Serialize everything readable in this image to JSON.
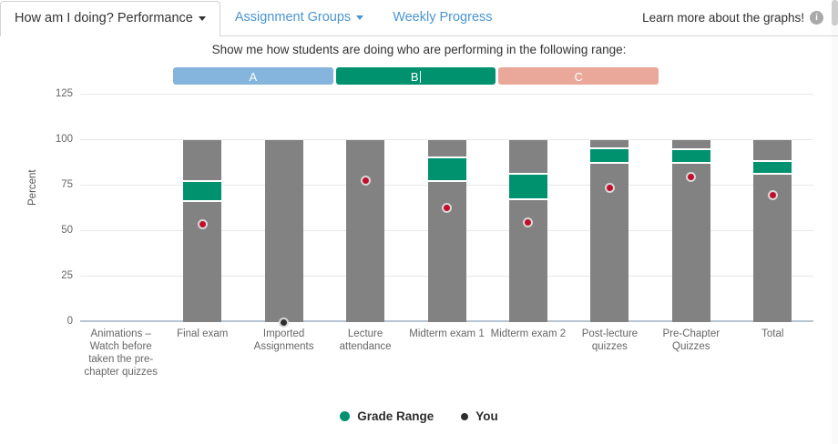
{
  "header": {
    "tabs": [
      {
        "label": "How am I doing? Performance",
        "caret": true,
        "active": true
      },
      {
        "label": "Assignment Groups",
        "caret": true,
        "active": false
      },
      {
        "label": "Weekly Progress",
        "caret": false,
        "active": false
      }
    ],
    "learn_more_label": "Learn more about the graphs!",
    "info_icon": "info-icon"
  },
  "subtitle": "Show me how students are doing who are performing in the following range:",
  "range_buttons": [
    {
      "label": "A",
      "color": "#85b5dd",
      "selected": false
    },
    {
      "label": "B",
      "color": "#00916f",
      "selected": true
    },
    {
      "label": "C",
      "color": "#e9a89a",
      "selected": false
    }
  ],
  "chart_data": {
    "type": "bar",
    "title": "",
    "xlabel": "",
    "ylabel": "Percent",
    "yticks": [
      0,
      25,
      50,
      75,
      100,
      125
    ],
    "ylim": [
      0,
      128
    ],
    "grid": true,
    "legend_position": "bottom",
    "legend": [
      {
        "label": "Grade Range",
        "color": "#00916f",
        "size": 11
      },
      {
        "label": "You",
        "color": "#2e2e2e",
        "size": 8
      }
    ],
    "colors": {
      "bar_gray": "#828282",
      "grade_range_green": "#00916f",
      "you_dot_red": "#c20e2c",
      "you_dot_dark": "#2e2e2e",
      "dot_ring": "#d8d8d8",
      "axis_line": "#b7c5d3",
      "gridline": "#e8e8e8"
    },
    "bars": [
      {
        "category": "Animations – Watch before taken the pre-chapter quizzes",
        "bar": null,
        "grade_range": null,
        "you": null,
        "you_color": null
      },
      {
        "category": "Final exam",
        "bar": [
          0,
          100
        ],
        "grade_range": [
          67,
          77
        ],
        "you": 54,
        "you_color": "#c20e2c"
      },
      {
        "category": "Imported Assignments",
        "bar": [
          0,
          100
        ],
        "grade_range": null,
        "you": 0,
        "you_color": "#2e2e2e"
      },
      {
        "category": "Lecture attendance",
        "bar": [
          0,
          100
        ],
        "grade_range": null,
        "you": 78,
        "you_color": "#c20e2c"
      },
      {
        "category": "Midterm exam 1",
        "bar": [
          0,
          100
        ],
        "grade_range": [
          78,
          90
        ],
        "you": 63,
        "you_color": "#c20e2c"
      },
      {
        "category": "Midterm exam 2",
        "bar": [
          0,
          100
        ],
        "grade_range": [
          68,
          81
        ],
        "you": 55,
        "you_color": "#c20e2c"
      },
      {
        "category": "Post-lecture quizzes",
        "bar": [
          0,
          100
        ],
        "grade_range": [
          88,
          95
        ],
        "you": 74,
        "you_color": "#c20e2c"
      },
      {
        "category": "Pre-Chapter Quizzes",
        "bar": [
          0,
          100
        ],
        "grade_range": [
          88,
          94.5
        ],
        "you": 80,
        "you_color": "#c20e2c"
      },
      {
        "category": "Total",
        "bar": [
          0,
          100
        ],
        "grade_range": [
          82,
          88
        ],
        "you": 70,
        "you_color": "#c20e2c"
      }
    ]
  }
}
